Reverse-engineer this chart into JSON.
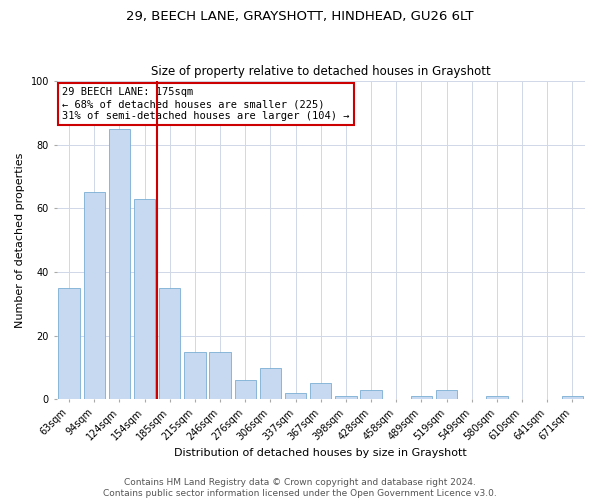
{
  "title": "29, BEECH LANE, GRAYSHOTT, HINDHEAD, GU26 6LT",
  "subtitle": "Size of property relative to detached houses in Grayshott",
  "xlabel": "Distribution of detached houses by size in Grayshott",
  "ylabel": "Number of detached properties",
  "bar_labels": [
    "63sqm",
    "94sqm",
    "124sqm",
    "154sqm",
    "185sqm",
    "215sqm",
    "246sqm",
    "276sqm",
    "306sqm",
    "337sqm",
    "367sqm",
    "398sqm",
    "428sqm",
    "458sqm",
    "489sqm",
    "519sqm",
    "549sqm",
    "580sqm",
    "610sqm",
    "641sqm",
    "671sqm"
  ],
  "bar_heights": [
    35,
    65,
    85,
    63,
    35,
    15,
    15,
    6,
    10,
    2,
    5,
    1,
    3,
    0,
    1,
    3,
    0,
    1,
    0,
    0,
    1
  ],
  "bar_color": "#c6d9f0",
  "bar_edge_color": "#7aadd4",
  "vline_index": 4,
  "vline_color": "#cc0000",
  "annotation_line1": "29 BEECH LANE: 175sqm",
  "annotation_line2": "← 68% of detached houses are smaller (225)",
  "annotation_line3": "31% of semi-detached houses are larger (104) →",
  "annotation_box_color": "#ffffff",
  "annotation_box_edge": "#cc0000",
  "ylim": [
    0,
    100
  ],
  "yticks": [
    0,
    20,
    40,
    60,
    80,
    100
  ],
  "bg_color": "#ffffff",
  "grid_color": "#d0d8e8",
  "footer_line1": "Contains HM Land Registry data © Crown copyright and database right 2024.",
  "footer_line2": "Contains public sector information licensed under the Open Government Licence v3.0.",
  "title_fontsize": 9.5,
  "subtitle_fontsize": 8.5,
  "axis_label_fontsize": 8,
  "tick_fontsize": 7,
  "annotation_fontsize": 7.5,
  "footer_fontsize": 6.5
}
